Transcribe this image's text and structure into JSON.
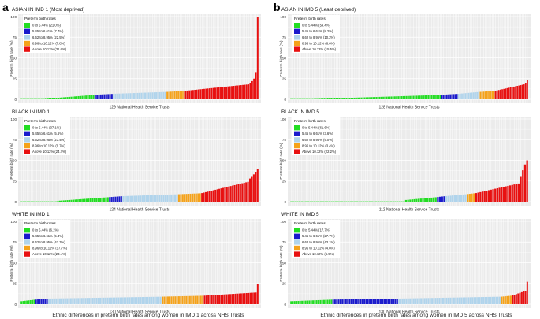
{
  "figure": {
    "panel_labels": [
      "a",
      "b"
    ],
    "captions": [
      "Ethnic differences in  preterm birth rates among women in IMD 1 across NHS Trusts",
      "Ethnic differences in preterm birth rates among women in IMD 5 across NHS Trusts"
    ],
    "colors": {
      "band_0_5_44": "#22dd22",
      "band_5_45_6_61": "#1a1acc",
      "band_6_62_8_95": "#b0d4ec",
      "band_8_96_10_12": "#f5a21a",
      "band_above_10_12": "#e81010",
      "panel_bg": "#ebebeb",
      "grid": "#ffffff"
    }
  },
  "chart_data": [
    {
      "type": "bar",
      "column": "left",
      "title": "ASIAN IN IMD 1 (Most deprived)",
      "xlabel": "129 National Health Service Trusts",
      "ylabel": "Preterm birth rate (%)",
      "ylim": [
        0,
        100
      ],
      "yticks": [
        0,
        25,
        50,
        75,
        100
      ],
      "legend_title": "Preterm birth rates",
      "legend": [
        "0 to 5.44% (21.0%)",
        "5.45 to 6.61% (7.7%)",
        "6.62 to 8.95% (22.5%)",
        "8.96 to 10.12% (7.8%)",
        "Above 10.12% (31.0%)"
      ],
      "n_zero": 13,
      "bands": [
        {
          "count": 27,
          "from": 0.6,
          "to": 5.3
        },
        {
          "count": 10,
          "from": 5.5,
          "to": 6.5
        },
        {
          "count": 29,
          "from": 6.7,
          "to": 8.9
        },
        {
          "count": 10,
          "from": 9.0,
          "to": 10.1
        },
        {
          "count": 40,
          "from": 10.3,
          "to": 18.0
        }
      ],
      "top_values": [
        20,
        22,
        25,
        32,
        100
      ]
    },
    {
      "type": "bar",
      "column": "right",
      "title": "ASIAN IN IMD 5 (Least deprived)",
      "xlabel": "128 National Health Service Trusts",
      "ylabel": "Preterm birth rate (%)",
      "ylim": [
        0,
        100
      ],
      "yticks": [
        0,
        25,
        50,
        75,
        100
      ],
      "legend_title": "Preterm birth rates",
      "legend": [
        "0 to 5.44% (59.4%)",
        "5.45 to 6.61% (8.2%)",
        "6.62 to 8.95% (10.2%)",
        "8.96 to 10.12% (6.6%)",
        "Above 10.12% (15.5%)"
      ],
      "n_zero": 14,
      "bands": [
        {
          "count": 76,
          "from": 0.4,
          "to": 5.3
        },
        {
          "count": 10,
          "from": 5.5,
          "to": 6.5
        },
        {
          "count": 13,
          "from": 6.7,
          "to": 8.9
        },
        {
          "count": 9,
          "from": 9.0,
          "to": 10.1
        },
        {
          "count": 20,
          "from": 10.3,
          "to": 18.0
        }
      ],
      "top_values": [
        20,
        23
      ]
    },
    {
      "type": "bar",
      "column": "left",
      "title": "BLACK IN IMD 1",
      "xlabel": "124 National Health Service Trusts",
      "ylabel": "Preterm birth rate (%)",
      "ylim": [
        0,
        100
      ],
      "yticks": [
        0,
        25,
        50,
        75,
        100
      ],
      "legend_title": "Preterm birth rates",
      "legend": [
        "0 to 5.44% (37.1%)",
        "5.45 to 6.61% (5.6%)",
        "6.62 to 8.95% (23.4%)",
        "8.96 to 10.12% (9.7%)",
        "Above 10.12% (24.2%)"
      ],
      "n_zero": 19,
      "bands": [
        {
          "count": 27,
          "from": 1.0,
          "to": 5.3
        },
        {
          "count": 7,
          "from": 5.5,
          "to": 6.5
        },
        {
          "count": 29,
          "from": 6.7,
          "to": 8.9
        },
        {
          "count": 12,
          "from": 9.0,
          "to": 10.1
        },
        {
          "count": 30,
          "from": 10.4,
          "to": 24.0
        }
      ],
      "top_values": [
        28,
        30,
        33,
        36,
        40
      ]
    },
    {
      "type": "bar",
      "column": "right",
      "title": "BLACK IN IMD 5",
      "xlabel": "112 National Health Service Trusts",
      "ylabel": "Preterm birth rate (%)",
      "ylim": [
        0,
        100
      ],
      "yticks": [
        0,
        25,
        50,
        75,
        100
      ],
      "legend_title": "Preterm birth rates",
      "legend": [
        "0 to 5.44% (61.6%)",
        "5.45 to 6.61% (3.6%)",
        "6.62 to 8.95% (9.0%)",
        "8.96 to 10.12% (3.4%)",
        "Above 10.12% (22.2%)"
      ],
      "n_zero": 54,
      "bands": [
        {
          "count": 15,
          "from": 2.0,
          "to": 5.3
        },
        {
          "count": 4,
          "from": 5.6,
          "to": 6.5
        },
        {
          "count": 10,
          "from": 6.8,
          "to": 8.9
        },
        {
          "count": 4,
          "from": 9.2,
          "to": 10.1
        },
        {
          "count": 25,
          "from": 10.4,
          "to": 22.0
        }
      ],
      "top_values": [
        30,
        38,
        45,
        50
      ]
    },
    {
      "type": "bar",
      "column": "left",
      "title": "WHITE IN IMD 1",
      "xlabel": "130 National Health Service Trusts",
      "ylabel": "Preterm birth rate (%)",
      "ylim": [
        0,
        100
      ],
      "yticks": [
        0,
        25,
        50,
        75,
        100
      ],
      "legend_title": "Preterm birth rates",
      "legend": [
        "0 to 5.44% (6.1%)",
        "5.45 to 6.61% (5.4%)",
        "6.62 to 8.95% (47.7%)",
        "8.96 to 10.12% (17.7%)",
        "Above 10.12% (23.1%)"
      ],
      "n_zero": 0,
      "bands": [
        {
          "count": 8,
          "from": 3.5,
          "to": 5.3
        },
        {
          "count": 7,
          "from": 5.5,
          "to": 6.5
        },
        {
          "count": 62,
          "from": 6.7,
          "to": 8.9
        },
        {
          "count": 23,
          "from": 9.0,
          "to": 10.1
        },
        {
          "count": 30,
          "from": 10.2,
          "to": 14.0
        }
      ],
      "top_values": [
        24
      ]
    },
    {
      "type": "bar",
      "column": "right",
      "title": "WHITE IN IMD 5",
      "xlabel": "130 National Health Service Trusts",
      "ylabel": "Preterm birth rate (%)",
      "ylim": [
        0,
        100
      ],
      "yticks": [
        0,
        25,
        50,
        75,
        100
      ],
      "legend_title": "Preterm birth rates",
      "legend": [
        "0 to 5.44% (17.7%)",
        "5.45 to 6.61% (27.7%)",
        "6.62 to 8.95% (43.1%)",
        "8.96 to 10.12% (4.6%)",
        "Above 10.12% (6.9%)"
      ],
      "n_zero": 0,
      "bands": [
        {
          "count": 23,
          "from": 3.5,
          "to": 5.4
        },
        {
          "count": 36,
          "from": 5.5,
          "to": 6.6
        },
        {
          "count": 56,
          "from": 6.7,
          "to": 8.9
        },
        {
          "count": 6,
          "from": 9.0,
          "to": 10.1
        },
        {
          "count": 9,
          "from": 10.5,
          "to": 16.0
        }
      ],
      "top_values": [
        27
      ]
    }
  ]
}
